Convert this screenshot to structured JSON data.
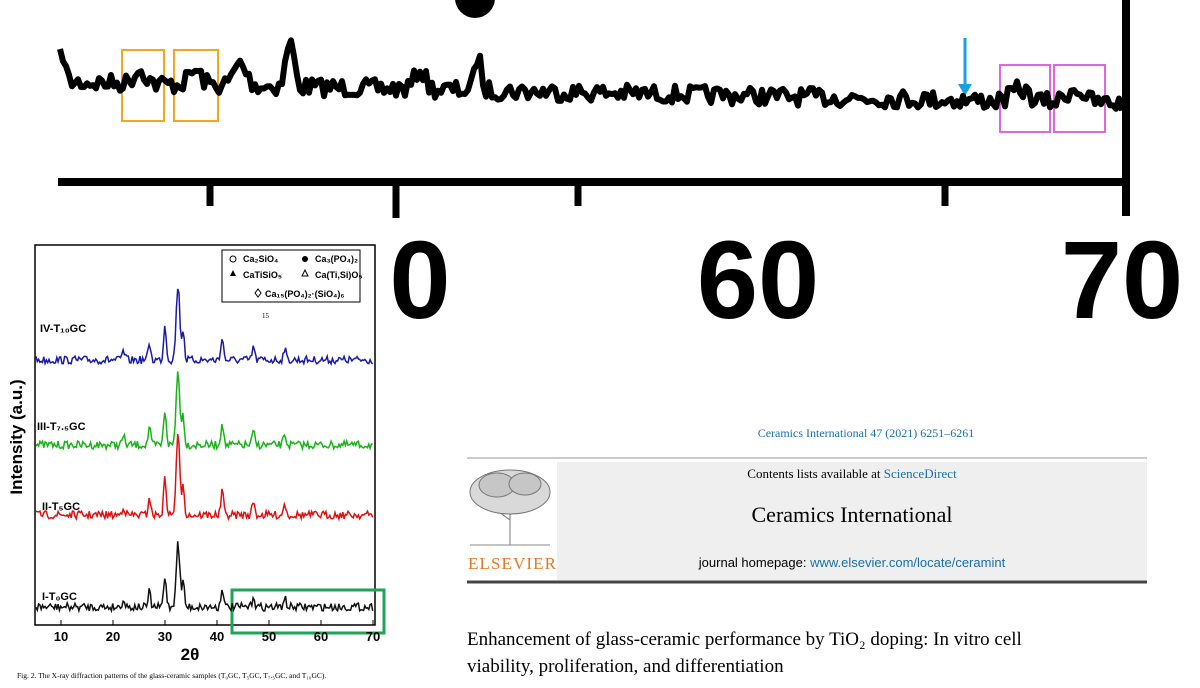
{
  "zoom_panel": {
    "tick_labels": [
      "0",
      "60",
      "70"
    ]
  },
  "figure": {
    "legend": [
      "Ca₂SiO₄",
      "Ca₃(PO₄)₂",
      "CaTiSiO₅",
      "Ca(Ti,Si)O₅",
      "Ca₁₅(PO₄)₂·(SiO₄)₆"
    ],
    "note": "15",
    "series_labels": [
      "IV-T₁₀GC",
      "III-T₇.₅GC",
      "II-T₅GC",
      "I-T₀GC"
    ],
    "x_tick_labels": [
      "10",
      "20",
      "30",
      "40",
      "50",
      "60",
      "70"
    ],
    "x_label": "2θ",
    "y_label": "Intensity (a.u.)",
    "caption": "Fig. 2. The X-ray diffraction patterns of the glass-ceramic samples (T₀GC, T₅GC, T₇.₅GC, and T₁₀GC)."
  },
  "article": {
    "journal_ref": "Ceramics International 47 (2021) 6251–6261",
    "contents_prefix": "Contents lists available at ",
    "contents_link": "ScienceDirect",
    "journal_name": "Ceramics International",
    "homepage_prefix": "journal homepage: ",
    "homepage_link": "www.elsevier.com/locate/ceramint",
    "publisher": "ELSEVIER",
    "title_lines": [
      "Enhancement of glass-ceramic performance by TiO₂ doping: In vitro cell",
      "viability, proliferation, and differentiation"
    ]
  }
}
